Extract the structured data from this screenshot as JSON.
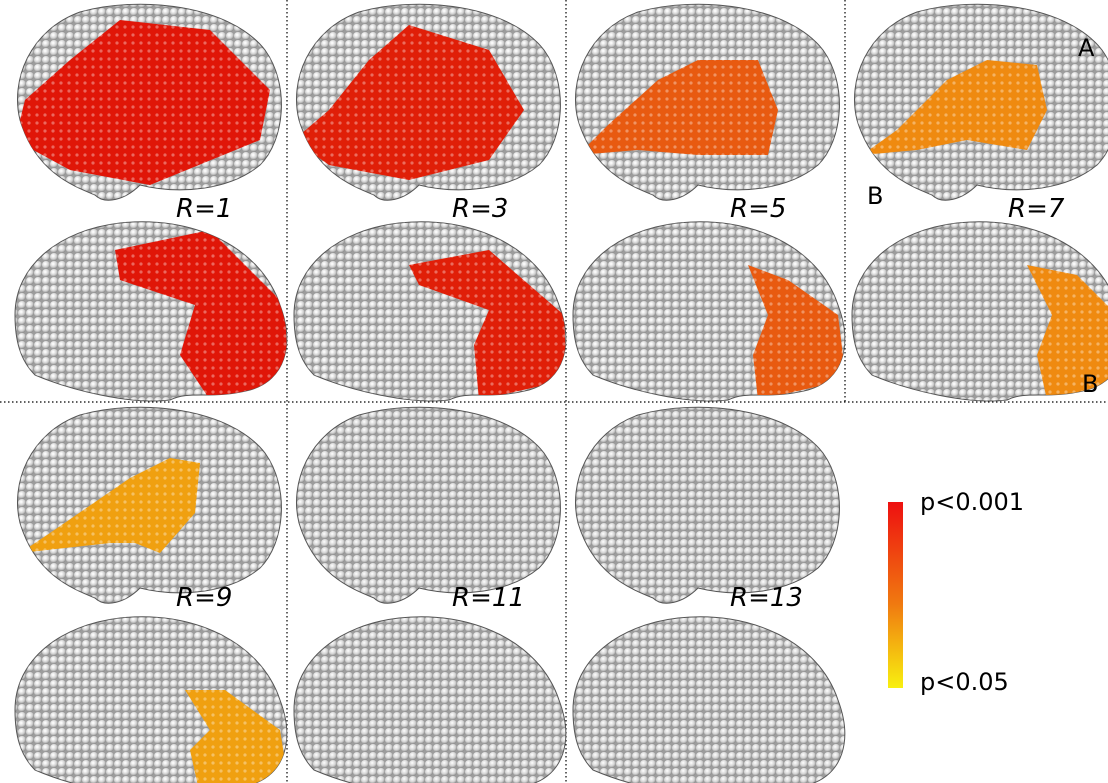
{
  "panels": [
    {
      "label": "R=1"
    },
    {
      "label": "R=3"
    },
    {
      "label": "R=5"
    },
    {
      "label": "R=7"
    },
    {
      "label": "R=9"
    },
    {
      "label": "R=11"
    },
    {
      "label": "R=13"
    }
  ],
  "annotations": {
    "view_a": "A",
    "view_b_lateral": "B",
    "view_b_medial": "B"
  },
  "colorbar": {
    "top_label": "p<0.001",
    "bottom_label": "p<0.05"
  }
}
